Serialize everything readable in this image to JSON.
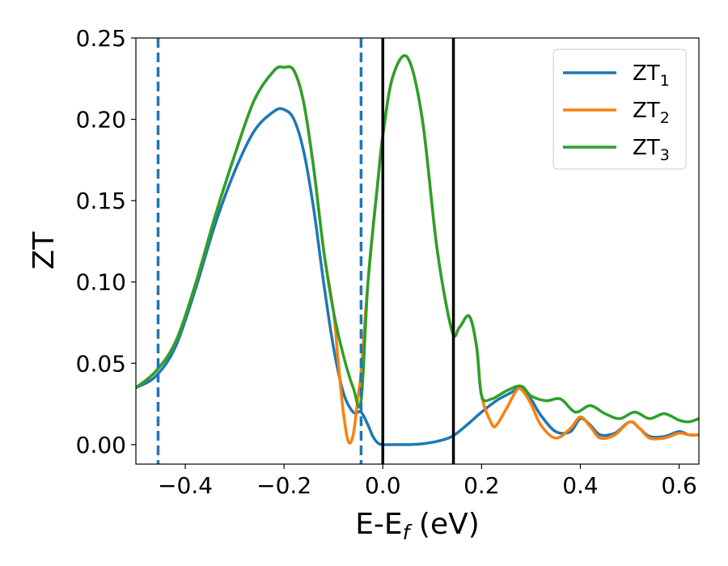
{
  "chart_data": {
    "type": "line",
    "xlabel": "E-E",
    "xlabel_sub": "f",
    "xlabel_unit": " (eV)",
    "ylabel": "ZT",
    "xlim": [
      -0.5,
      0.64
    ],
    "ylim": [
      -0.012,
      0.25
    ],
    "xticks": [
      -0.4,
      -0.2,
      0.0,
      0.2,
      0.4,
      0.6
    ],
    "xtick_labels": [
      "−0.4",
      "−0.2",
      "0.0",
      "0.2",
      "0.4",
      "0.6"
    ],
    "yticks": [
      0.0,
      0.05,
      0.1,
      0.15,
      0.2,
      0.25
    ],
    "ytick_labels": [
      "0.00",
      "0.05",
      "0.10",
      "0.15",
      "0.20",
      "0.25"
    ],
    "grid": false,
    "legend_position": "top-right",
    "vlines": [
      {
        "x": -0.455,
        "style": "dashed",
        "color": "#1f77b4"
      },
      {
        "x": -0.044,
        "style": "dashed",
        "color": "#1f77b4"
      },
      {
        "x": 0.0,
        "style": "solid",
        "color": "#000000"
      },
      {
        "x": 0.143,
        "style": "solid",
        "color": "#000000"
      }
    ],
    "series": [
      {
        "name": "ZT",
        "sub": "1",
        "color": "#1f77b4",
        "x": [
          -0.5,
          -0.46,
          -0.42,
          -0.38,
          -0.34,
          -0.3,
          -0.26,
          -0.22,
          -0.2,
          -0.18,
          -0.16,
          -0.14,
          -0.12,
          -0.1,
          -0.08,
          -0.06,
          -0.044,
          -0.03,
          -0.02,
          -0.01,
          0.0,
          0.02,
          0.05,
          0.08,
          0.11,
          0.14,
          0.17,
          0.2,
          0.23,
          0.26,
          0.28,
          0.3,
          0.32,
          0.35,
          0.38,
          0.4,
          0.42,
          0.44,
          0.47,
          0.5,
          0.52,
          0.54,
          0.57,
          0.6,
          0.62,
          0.64
        ],
        "y": [
          0.035,
          0.042,
          0.06,
          0.095,
          0.135,
          0.168,
          0.193,
          0.205,
          0.206,
          0.2,
          0.18,
          0.145,
          0.1,
          0.06,
          0.032,
          0.02,
          0.02,
          0.012,
          0.005,
          0.001,
          0.0,
          0.0,
          0.0,
          0.0005,
          0.002,
          0.005,
          0.012,
          0.02,
          0.027,
          0.032,
          0.035,
          0.028,
          0.018,
          0.008,
          0.008,
          0.016,
          0.012,
          0.006,
          0.007,
          0.014,
          0.01,
          0.005,
          0.005,
          0.008,
          0.006,
          0.006
        ]
      },
      {
        "name": "ZT",
        "sub": "2",
        "color": "#ff7f0e",
        "x": [
          -0.5,
          -0.46,
          -0.42,
          -0.38,
          -0.34,
          -0.3,
          -0.26,
          -0.22,
          -0.2,
          -0.18,
          -0.16,
          -0.14,
          -0.12,
          -0.1,
          -0.09,
          -0.08,
          -0.07,
          -0.06,
          -0.05,
          -0.044,
          -0.03,
          -0.01,
          0.0,
          0.02,
          0.05,
          0.08,
          0.11,
          0.14,
          0.155,
          0.175,
          0.19,
          0.2,
          0.22,
          0.23,
          0.25,
          0.27,
          0.28,
          0.3,
          0.32,
          0.35,
          0.38,
          0.4,
          0.42,
          0.44,
          0.47,
          0.5,
          0.52,
          0.54,
          0.57,
          0.6,
          0.62,
          0.64
        ],
        "y": [
          0.035,
          0.045,
          0.063,
          0.098,
          0.14,
          0.178,
          0.212,
          0.23,
          0.232,
          0.23,
          0.21,
          0.17,
          0.12,
          0.082,
          0.05,
          0.02,
          0.002,
          0.006,
          0.03,
          0.045,
          0.1,
          0.162,
          0.19,
          0.226,
          0.238,
          0.2,
          0.12,
          0.07,
          0.072,
          0.079,
          0.06,
          0.03,
          0.013,
          0.012,
          0.022,
          0.033,
          0.034,
          0.025,
          0.012,
          0.004,
          0.01,
          0.017,
          0.011,
          0.004,
          0.006,
          0.014,
          0.01,
          0.004,
          0.004,
          0.007,
          0.006,
          0.006
        ]
      },
      {
        "name": "ZT",
        "sub": "3",
        "color": "#2ca02c",
        "x": [
          -0.5,
          -0.46,
          -0.42,
          -0.38,
          -0.34,
          -0.3,
          -0.26,
          -0.22,
          -0.2,
          -0.18,
          -0.16,
          -0.14,
          -0.12,
          -0.1,
          -0.08,
          -0.06,
          -0.044,
          -0.03,
          -0.01,
          0.0,
          0.02,
          0.05,
          0.08,
          0.11,
          0.14,
          0.155,
          0.175,
          0.19,
          0.2,
          0.22,
          0.25,
          0.28,
          0.3,
          0.33,
          0.36,
          0.39,
          0.42,
          0.45,
          0.48,
          0.51,
          0.54,
          0.57,
          0.6,
          0.62,
          0.64
        ],
        "y": [
          0.035,
          0.045,
          0.063,
          0.098,
          0.14,
          0.178,
          0.212,
          0.23,
          0.232,
          0.23,
          0.21,
          0.17,
          0.12,
          0.082,
          0.055,
          0.035,
          0.027,
          0.1,
          0.162,
          0.19,
          0.226,
          0.238,
          0.2,
          0.12,
          0.07,
          0.072,
          0.079,
          0.06,
          0.03,
          0.028,
          0.033,
          0.036,
          0.03,
          0.027,
          0.028,
          0.02,
          0.024,
          0.019,
          0.016,
          0.02,
          0.016,
          0.019,
          0.015,
          0.014,
          0.016
        ]
      }
    ]
  }
}
